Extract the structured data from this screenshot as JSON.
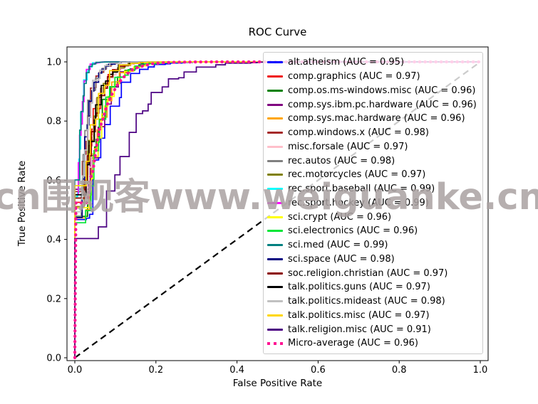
{
  "watermark": {
    "text": "cn围观客www.weiguanke.cn"
  },
  "chart_data": {
    "type": "line",
    "title": "ROC Curve",
    "xlabel": "False Positive Rate",
    "ylabel": "True Positive Rate",
    "xlim": [
      0.0,
      1.0
    ],
    "ylim": [
      0.0,
      1.05
    ],
    "xticks": [
      "0.0",
      "0.2",
      "0.4",
      "0.6",
      "0.8",
      "1.0"
    ],
    "yticks": [
      "0.0",
      "0.2",
      "0.4",
      "0.6",
      "0.8",
      "1.0"
    ],
    "grid": false,
    "legend_position": "center-right-inside",
    "series": [
      {
        "name": "alt.atheism",
        "auc": 0.95,
        "color": "#0000FF",
        "label": "alt.atheism (AUC = 0.95)"
      },
      {
        "name": "comp.graphics",
        "auc": 0.97,
        "color": "#F01010",
        "label": "comp.graphics (AUC = 0.97)"
      },
      {
        "name": "comp.os.ms-windows.misc",
        "auc": 0.96,
        "color": "#008000",
        "label": "comp.os.ms-windows.misc (AUC = 0.96)"
      },
      {
        "name": "comp.sys.ibm.pc.hardware",
        "auc": 0.96,
        "color": "#800080",
        "label": "comp.sys.ibm.pc.hardware (AUC = 0.96)"
      },
      {
        "name": "comp.sys.mac.hardware",
        "auc": 0.96,
        "color": "#FFA500",
        "label": "comp.sys.mac.hardware (AUC = 0.96)"
      },
      {
        "name": "comp.windows.x",
        "auc": 0.98,
        "color": "#A52A2A",
        "label": "comp.windows.x (AUC = 0.98)"
      },
      {
        "name": "misc.forsale",
        "auc": 0.97,
        "color": "#FFC0CB",
        "label": "misc.forsale (AUC = 0.97)"
      },
      {
        "name": "rec.autos",
        "auc": 0.98,
        "color": "#808080",
        "label": "rec.autos (AUC = 0.98)"
      },
      {
        "name": "rec.motorcycles",
        "auc": 0.97,
        "color": "#808000",
        "label": "rec.motorcycles (AUC = 0.97)"
      },
      {
        "name": "rec.sport.baseball",
        "auc": 0.99,
        "color": "#00FFFF",
        "label": "rec.sport.baseball (AUC = 0.99)"
      },
      {
        "name": "rec.sport.hockey",
        "auc": 0.99,
        "color": "#FF00FF",
        "label": "rec.sport.hockey (AUC = 0.99)"
      },
      {
        "name": "sci.crypt",
        "auc": 0.96,
        "color": "#FFFF00",
        "label": "sci.crypt (AUC = 0.96)"
      },
      {
        "name": "sci.electronics",
        "auc": 0.96,
        "color": "#00E636",
        "label": "sci.electronics (AUC = 0.96)"
      },
      {
        "name": "sci.med",
        "auc": 0.99,
        "color": "#008080",
        "label": "sci.med (AUC = 0.99)"
      },
      {
        "name": "sci.space",
        "auc": 0.98,
        "color": "#000080",
        "label": "sci.space (AUC = 0.98)"
      },
      {
        "name": "soc.religion.christian",
        "auc": 0.97,
        "color": "#8B0000",
        "label": "soc.religion.christian (AUC = 0.97)"
      },
      {
        "name": "talk.politics.guns",
        "auc": 0.97,
        "color": "#000000",
        "label": "talk.politics.guns (AUC = 0.97)"
      },
      {
        "name": "talk.politics.mideast",
        "auc": 0.98,
        "color": "#C0C0C0",
        "label": "talk.politics.mideast (AUC = 0.98)"
      },
      {
        "name": "talk.politics.misc",
        "auc": 0.97,
        "color": "#FFD700",
        "label": "talk.politics.misc (AUC = 0.97)"
      },
      {
        "name": "talk.religion.misc",
        "auc": 0.91,
        "color": "#4B0082",
        "label": "talk.religion.misc (AUC = 0.91)"
      }
    ],
    "micro_average": {
      "name": "Micro-average",
      "auc": 0.96,
      "color": "#FF1493",
      "linestyle": "dotted",
      "label": "Micro-average (AUC = 0.96)"
    },
    "reference_line": {
      "from": [
        0,
        0
      ],
      "to": [
        1,
        1
      ],
      "color": "#000000",
      "linestyle": "dashed"
    }
  }
}
